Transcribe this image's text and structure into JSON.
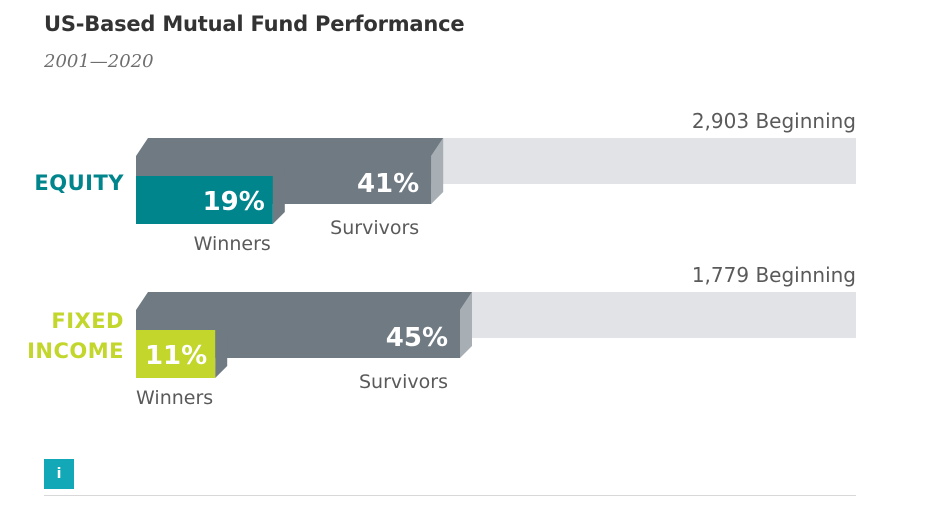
{
  "header": {
    "title": "US-Based Mutual Fund Performance",
    "subtitle": "2001—2020"
  },
  "colors": {
    "beginning": "#e1e3e6",
    "survivors": "#6f7a82",
    "survivors_side": "#a7afb5",
    "equity": "#00858d",
    "fixed_income": "#c2d62c",
    "label_text": "#5a5a5a",
    "info_button": "#12a8b8"
  },
  "info_button": {
    "icon": "info-icon",
    "label": "i"
  },
  "chart_data": {
    "type": "bar",
    "title": "US-Based Mutual Fund Performance",
    "subtitle": "2001—2020",
    "categories": [
      {
        "name_lines": [
          "EQUITY"
        ],
        "color": "#00858d"
      },
      {
        "name_lines": [
          "FIXED",
          "INCOME"
        ],
        "color": "#c2d62c"
      }
    ],
    "series": [
      {
        "name": "Beginning",
        "values": [
          100,
          100
        ],
        "labels": [
          "2,903 Beginning",
          "1,779 Beginning"
        ]
      },
      {
        "name": "Survivors",
        "values": [
          41,
          45
        ],
        "labels": [
          "41%",
          "45%"
        ]
      },
      {
        "name": "Winners",
        "values": [
          19,
          11
        ],
        "labels": [
          "19%",
          "11%"
        ]
      }
    ],
    "bar_captions": {
      "survivors": "Survivors",
      "winners": "Winners"
    },
    "ylim": [
      0,
      100
    ]
  }
}
